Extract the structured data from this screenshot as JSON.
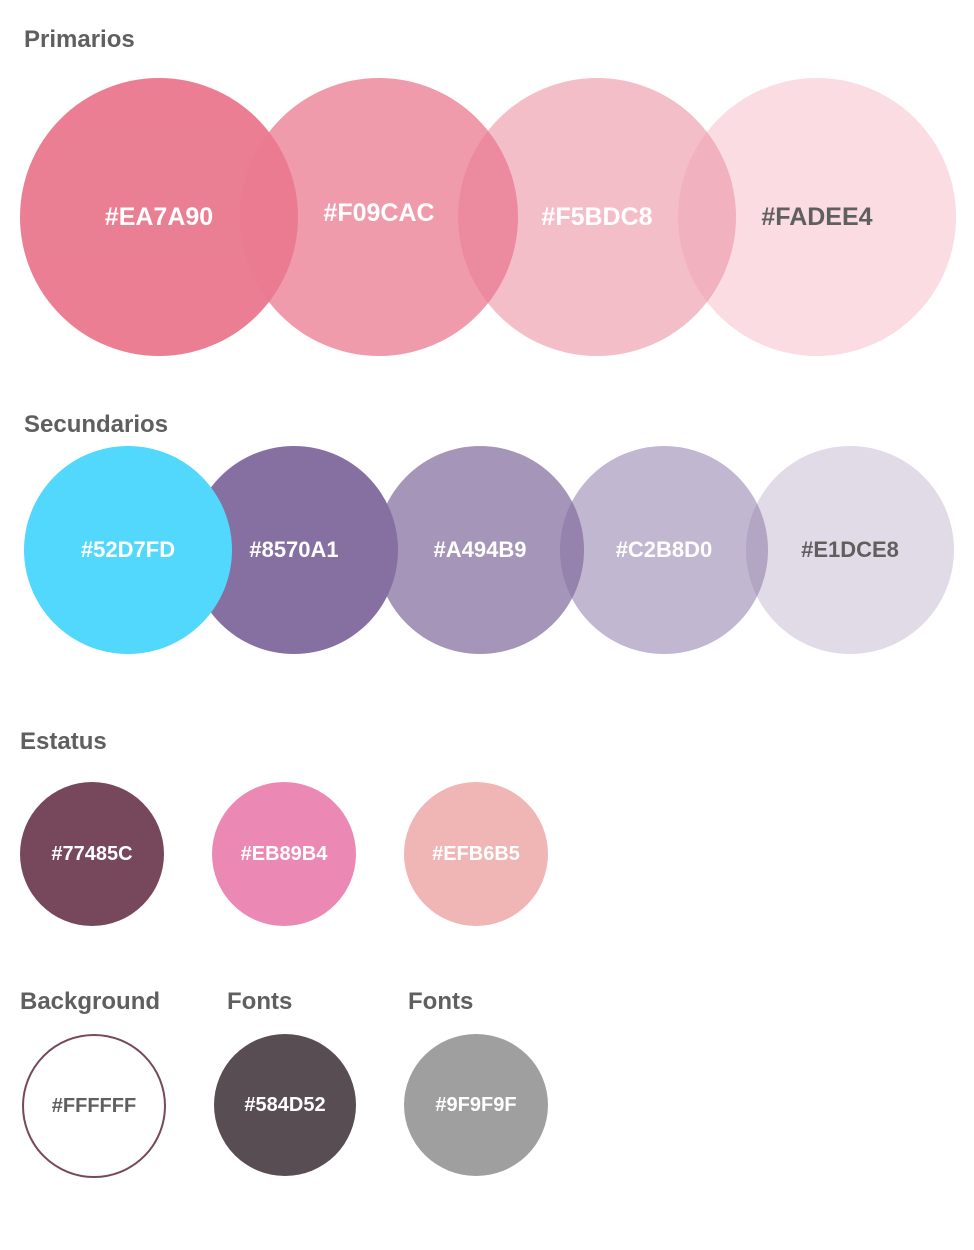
{
  "primarios": {
    "title": "Primarios",
    "swatches": [
      {
        "label": "#EA7A90",
        "color": "#EA7A90"
      },
      {
        "label": "#F09CAC",
        "color": "#F09CAC"
      },
      {
        "label": "#F5BDC8",
        "color": "#F5BDC8"
      },
      {
        "label": "#FADEE4",
        "color": "#FADEE4"
      }
    ]
  },
  "secundarios": {
    "title": "Secundarios",
    "swatches": [
      {
        "label": "#52D7FD",
        "color": "#52D7FD"
      },
      {
        "label": "#8570A1",
        "color": "#8570A1"
      },
      {
        "label": "#A494B9",
        "color": "#A494B9"
      },
      {
        "label": "#C2B8D0",
        "color": "#C2B8D0"
      },
      {
        "label": "#E1DCE8",
        "color": "#E1DCE8"
      }
    ]
  },
  "estatus": {
    "title": "Estatus",
    "swatches": [
      {
        "label": "#77485C",
        "color": "#77485C"
      },
      {
        "label": "#EB89B4",
        "color": "#EB89B4"
      },
      {
        "label": "#EFB6B5",
        "color": "#EFB6B5"
      }
    ]
  },
  "background": {
    "title": "Background",
    "swatch": {
      "label": "#FFFFFF",
      "color": "#FFFFFF",
      "border_color": "#77485C"
    }
  },
  "fonts_primary": {
    "title": "Fonts",
    "swatch": {
      "label": "#584D52",
      "color": "#584D52"
    }
  },
  "fonts_secondary": {
    "title": "Fonts",
    "swatch": {
      "label": "#9F9F9F",
      "color": "#9F9F9F"
    }
  }
}
